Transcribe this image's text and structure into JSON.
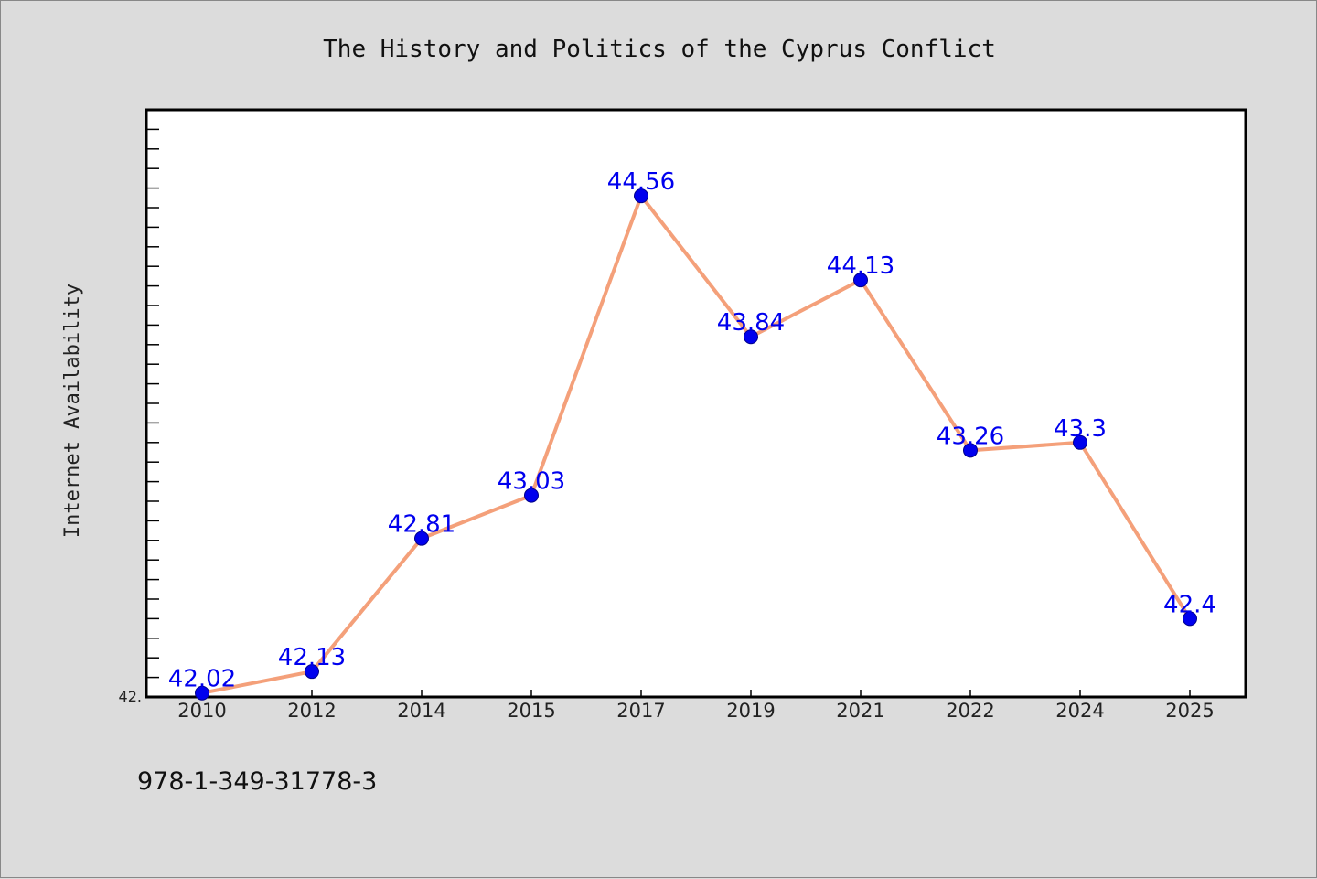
{
  "chart_data": {
    "type": "line",
    "title": "The History and Politics of the Cyprus Conflict",
    "xlabel": "",
    "ylabel": "Internet Availability",
    "categories": [
      "2010",
      "2012",
      "2014",
      "2015",
      "2017",
      "2019",
      "2021",
      "2022",
      "2024",
      "2025"
    ],
    "series": [
      {
        "values": [
          42.02,
          42.13,
          42.81,
          43.03,
          44.56,
          43.84,
          44.13,
          43.26,
          43.3,
          42.4
        ],
        "labels": [
          "42.02",
          "42.13",
          "42.81",
          "43.03",
          "44.56",
          "43.84",
          "44.13",
          "43.26",
          "43.3",
          "42.4"
        ]
      }
    ],
    "ylim": [
      42.0,
      45.0
    ],
    "y_tick_label": "42.",
    "grid": false,
    "legend": "none",
    "colors": {
      "line": "#f4a07a",
      "marker": "#0000ee",
      "label": "#0000ee",
      "plot_bg": "#ffffff",
      "page_bg": "#dcdcdc"
    }
  },
  "footer": {
    "isbn": "978-1-349-31778-3"
  }
}
